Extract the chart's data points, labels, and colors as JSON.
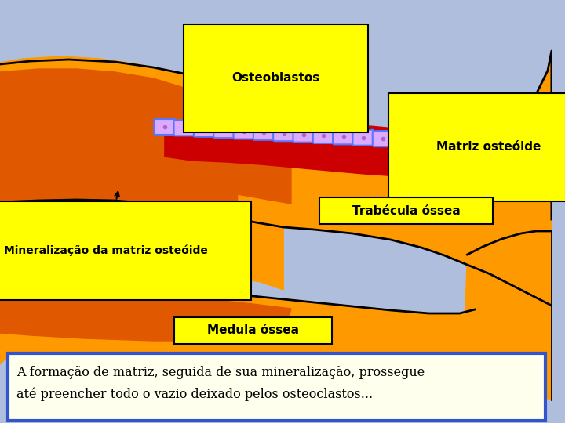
{
  "bg_color": "#b0bedd",
  "bone_orange": "#ff9900",
  "bone_dark": "#e05800",
  "red_matrix": "#cc0000",
  "black": "#000000",
  "yellow_bg": "#ffff00",
  "white": "#ffffff",
  "cell_fill": "#ddaaff",
  "cell_border": "#5577ff",
  "text_border": "#3355cc",
  "labels": {
    "osteoblastos": "Osteoblastos",
    "matriz": "Matriz osteóide",
    "trabécula": "Trabécula óssea",
    "mineralização": "Mineralização da matriz osteóide",
    "medula": "Medula óssea",
    "description": "A formação de matriz, seguida de sua mineralização, prossegue\naté preencher todo o vazio deixado pelos osteoclastos..."
  }
}
